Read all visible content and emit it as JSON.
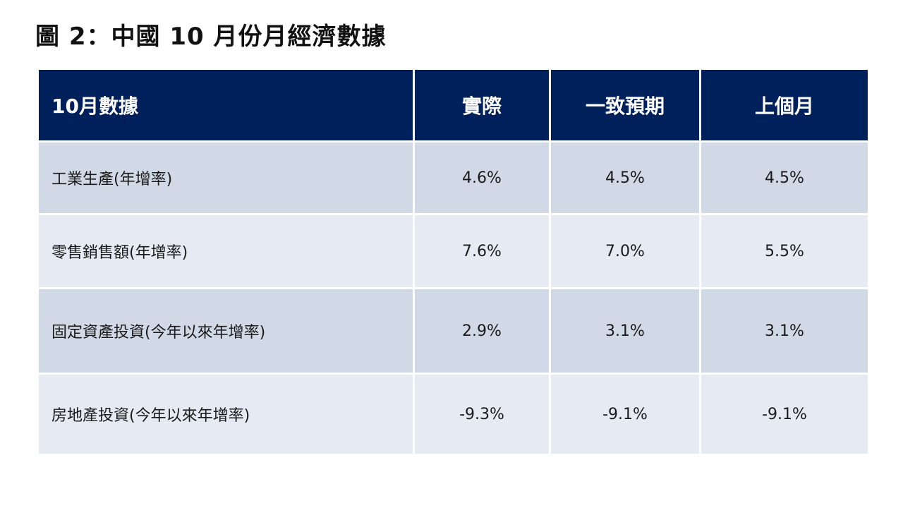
{
  "title": "圖 2：中國 10 月份月經濟數據",
  "chart_data": {
    "type": "table",
    "columns": [
      "10月數據",
      "實際",
      "一致預期",
      "上個月"
    ],
    "rows": [
      {
        "label": "工業生產(年增率)",
        "values": [
          "4.6%",
          "4.5%",
          "4.5%"
        ]
      },
      {
        "label": "零售銷售額(年增率)",
        "values": [
          "7.6%",
          "7.0%",
          "5.5%"
        ]
      },
      {
        "label": "固定資產投資(今年以來年增率)",
        "values": [
          "2.9%",
          "3.1%",
          "3.1%"
        ]
      },
      {
        "label": "房地產投資(今年以來年增率)",
        "values": [
          "-9.3%",
          "-9.1%",
          "-9.1%"
        ]
      }
    ]
  },
  "colors": {
    "header_bg": "#00205b",
    "row_odd_bg": "#d1d8e6",
    "row_even_bg": "#e6ebf3"
  }
}
